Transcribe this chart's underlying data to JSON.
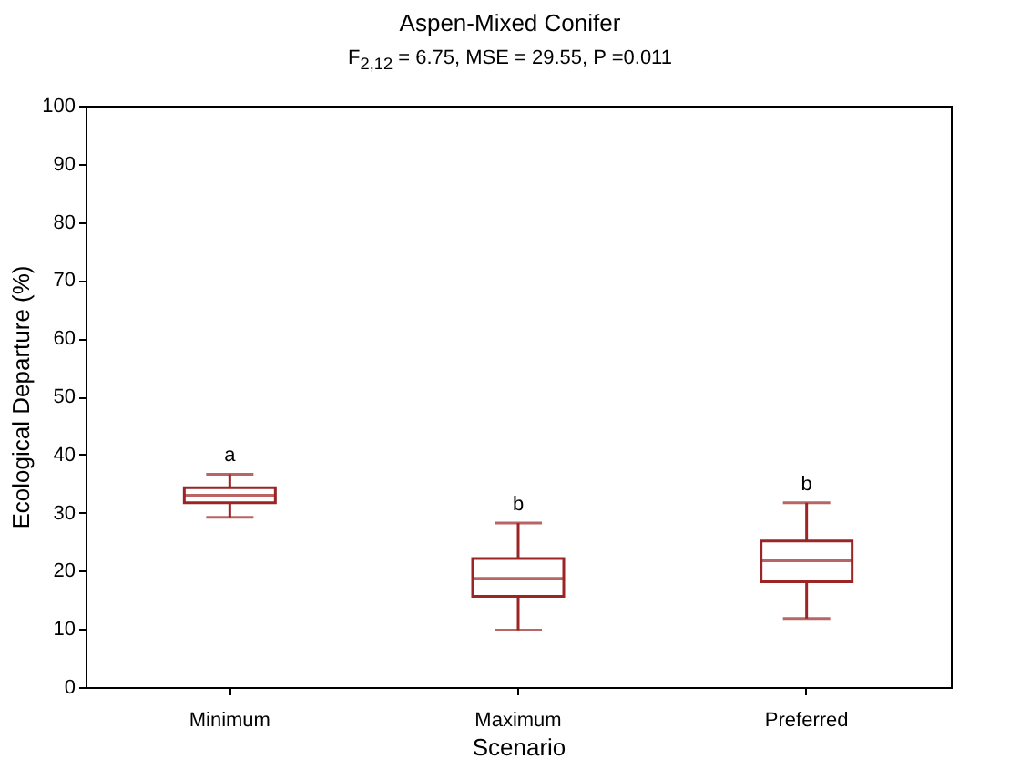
{
  "chart_data": {
    "type": "box",
    "title": "Aspen-Mixed Conifer",
    "subtitle": "F$_{2,12}$ = 6.75, MSE = 29.55, P =0.011",
    "xlabel": "Scenario",
    "ylabel": "Ecological Departure (%)",
    "categories": [
      "Minimum",
      "Maximum",
      "Preferred"
    ],
    "color": "#9b2424",
    "boxes": [
      {
        "low": 29.2,
        "q1": 31.7,
        "median": 33.0,
        "q3": 34.3,
        "high": 36.6
      },
      {
        "low": 9.8,
        "q1": 15.6,
        "median": 18.7,
        "q3": 22.1,
        "high": 28.2
      },
      {
        "low": 11.8,
        "q1": 18.1,
        "median": 21.7,
        "q3": 25.1,
        "high": 31.7
      }
    ],
    "ylim": [
      0,
      100
    ],
    "yticks": [
      0,
      10,
      20,
      30,
      40,
      50,
      60,
      70,
      80,
      90,
      100
    ],
    "grid": false,
    "annotations": [
      "a",
      "b",
      "b"
    ]
  }
}
